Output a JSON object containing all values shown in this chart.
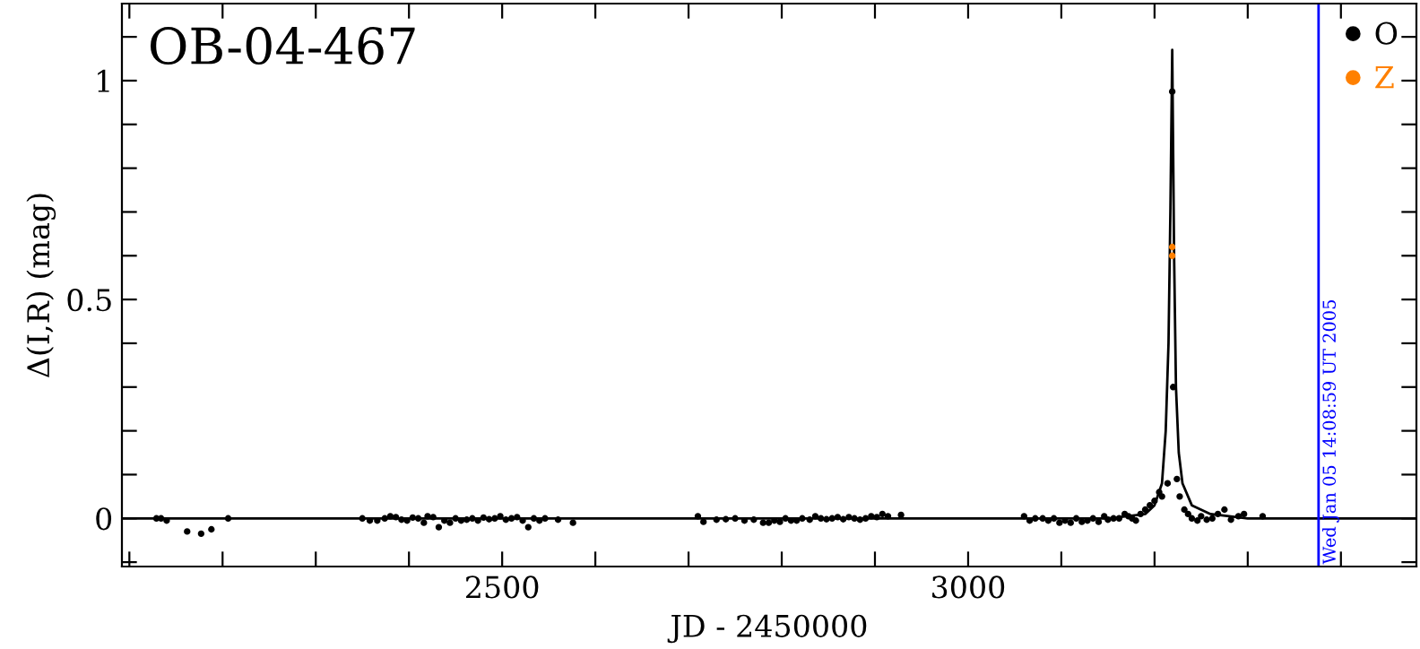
{
  "chart_data": {
    "type": "scatter",
    "title": "OB-04-467",
    "xlabel": "JD - 2450000",
    "ylabel": "Δ(I,R) (mag)",
    "xlim": [
      2092,
      3481
    ],
    "ylim": [
      -0.11,
      1.176
    ],
    "xticks": [
      {
        "value": 2100,
        "label": null
      },
      {
        "value": 2200,
        "label": null
      },
      {
        "value": 2300,
        "label": null
      },
      {
        "value": 2400,
        "label": null
      },
      2500,
      {
        "value": 2600,
        "label": null
      },
      {
        "value": 2700,
        "label": null
      },
      {
        "value": 2800,
        "label": null
      },
      {
        "value": 2900,
        "label": null
      },
      3000,
      {
        "value": 3100,
        "label": null
      },
      {
        "value": 3200,
        "label": null
      },
      {
        "value": 3300,
        "label": null
      },
      {
        "value": 3400,
        "label": null
      }
    ],
    "yticks": [
      {
        "value": -0.1,
        "label": null
      },
      0,
      {
        "value": 0.1,
        "label": null
      },
      {
        "value": 0.2,
        "label": null
      },
      {
        "value": 0.3,
        "label": null
      },
      {
        "value": 0.4,
        "label": null
      },
      0.5,
      {
        "value": 0.6,
        "label": null
      },
      {
        "value": 0.7,
        "label": null
      },
      {
        "value": 0.8,
        "label": null
      },
      {
        "value": 0.9,
        "label": null
      },
      1,
      {
        "value": 1.1,
        "label": null
      }
    ],
    "grid": false,
    "legend": "top right",
    "marker": "circle",
    "ref_lines": [
      {
        "axis": "x",
        "value": 3376,
        "color": "#0000ff"
      }
    ],
    "annotations": [
      "Wed Jan 05 14:08:59 UT 2005"
    ],
    "series": [
      {
        "name": "O",
        "color": "#000000",
        "x": [
          2129,
          2134,
          2140,
          2162,
          2177,
          2188,
          2206,
          2350,
          2358,
          2366,
          2374,
          2380,
          2386,
          2392,
          2398,
          2404,
          2410,
          2416,
          2420,
          2426,
          2432,
          2438,
          2444,
          2450,
          2456,
          2462,
          2468,
          2474,
          2480,
          2486,
          2492,
          2498,
          2504,
          2510,
          2516,
          2522,
          2528,
          2534,
          2540,
          2546,
          2560,
          2576,
          2710,
          2716,
          2730,
          2740,
          2750,
          2760,
          2770,
          2780,
          2786,
          2792,
          2798,
          2804,
          2810,
          2816,
          2822,
          2830,
          2836,
          2842,
          2848,
          2854,
          2860,
          2866,
          2872,
          2878,
          2884,
          2890,
          2896,
          2902,
          2908,
          2914,
          2928,
          3060,
          3066,
          3072,
          3080,
          3086,
          3092,
          3098,
          3104,
          3110,
          3116,
          3122,
          3128,
          3134,
          3140,
          3146,
          3150,
          3156,
          3162,
          3168,
          3172,
          3176,
          3180,
          3185,
          3190,
          3195,
          3200,
          3205,
          3208,
          3214,
          3219,
          3220,
          3224,
          3227,
          3232,
          3236,
          3240,
          3246,
          3250,
          3256,
          3262,
          3268,
          3275,
          3282,
          3290,
          3296,
          3316
        ],
        "values": [
          0.0,
          0.0,
          -0.005,
          -0.03,
          -0.035,
          -0.025,
          0.0,
          0.0,
          -0.005,
          -0.005,
          0.0,
          0.005,
          0.003,
          -0.003,
          -0.005,
          0.002,
          0.0,
          -0.01,
          0.005,
          0.003,
          -0.02,
          -0.005,
          -0.01,
          0.0,
          -0.005,
          -0.003,
          0.0,
          -0.005,
          0.002,
          -0.002,
          0.0,
          0.005,
          -0.003,
          0.0,
          0.003,
          -0.005,
          -0.02,
          0.0,
          -0.005,
          0.0,
          -0.003,
          -0.01,
          0.005,
          -0.008,
          -0.003,
          -0.002,
          0.0,
          -0.005,
          -0.003,
          -0.01,
          -0.01,
          -0.005,
          -0.008,
          0.0,
          -0.005,
          -0.005,
          0.0,
          -0.003,
          0.005,
          0.0,
          -0.002,
          0.0,
          0.003,
          -0.002,
          0.003,
          0.0,
          -0.003,
          0.0,
          0.005,
          0.003,
          0.01,
          0.005,
          0.008,
          0.005,
          -0.005,
          0.0,
          0.0,
          -0.005,
          0.0,
          -0.01,
          -0.005,
          -0.01,
          0.0,
          -0.008,
          -0.005,
          0.0,
          -0.008,
          0.005,
          -0.003,
          0.0,
          0.0,
          0.01,
          0.005,
          0.0,
          -0.005,
          0.01,
          0.02,
          0.03,
          0.04,
          0.06,
          0.05,
          0.08,
          0.975,
          0.3,
          0.09,
          0.05,
          0.02,
          0.01,
          0.0,
          -0.005,
          0.005,
          -0.003,
          0.0,
          0.01,
          0.02,
          -0.003,
          0.005,
          0.01,
          0.005
        ]
      },
      {
        "name": "Z",
        "color": "#ff8000",
        "x": [
          3219,
          3219
        ],
        "values": [
          0.62,
          0.6
        ]
      },
      {
        "type": "line",
        "marker": "none",
        "color": "#000000",
        "x": [
          2092,
          3150,
          3190,
          3200,
          3208,
          3212,
          3215,
          3217,
          3219,
          3221,
          3223,
          3226,
          3230,
          3240,
          3260,
          3300,
          3481
        ],
        "values": [
          0.0,
          0.0,
          0.01,
          0.03,
          0.08,
          0.2,
          0.4,
          0.7,
          1.07,
          0.6,
          0.3,
          0.15,
          0.08,
          0.03,
          0.01,
          0.0,
          0.0
        ]
      }
    ]
  }
}
